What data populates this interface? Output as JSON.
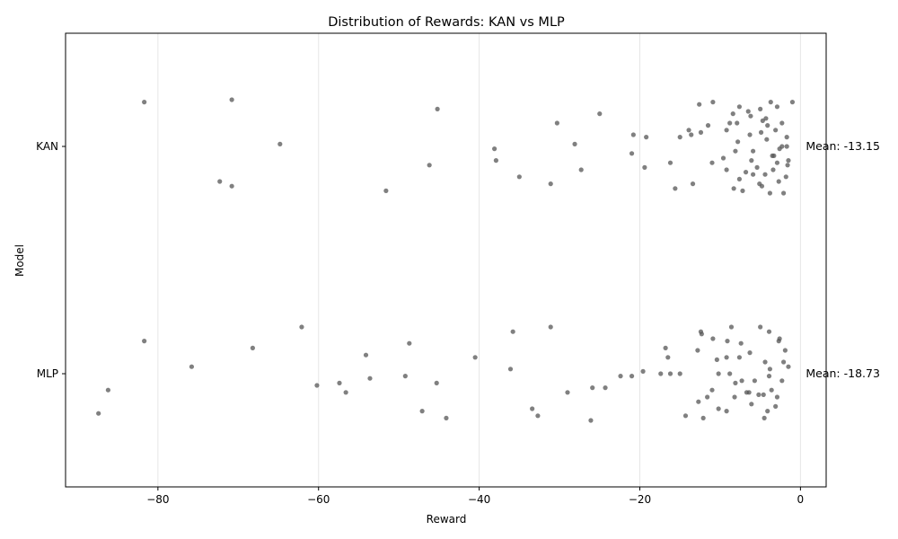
{
  "chart_data": {
    "type": "scatter",
    "title": "Distribution of Rewards: KAN vs MLP",
    "xlabel": "Reward",
    "ylabel": "Model",
    "xlim": [
      -91.5,
      3.2
    ],
    "x_ticks": [
      -80,
      -60,
      -40,
      -20,
      0
    ],
    "x_tick_labels": [
      "−80",
      "−60",
      "−40",
      "−20",
      "0"
    ],
    "categories": [
      "KAN",
      "MLP"
    ],
    "grid": "vertical",
    "point_color": "#555555",
    "series": [
      {
        "name": "KAN",
        "mean_label": "Mean: -13.15",
        "points": [
          [
            -81.7,
            0.19
          ],
          [
            -70.8,
            0.2
          ],
          [
            -45.2,
            0.16
          ],
          [
            -25.0,
            0.14
          ],
          [
            -30.3,
            0.1
          ],
          [
            -20.8,
            0.05
          ],
          [
            -19.2,
            0.04
          ],
          [
            -64.8,
            0.01
          ],
          [
            -38.1,
            -0.01
          ],
          [
            -28.1,
            0.01
          ],
          [
            -21.0,
            -0.03
          ],
          [
            -37.9,
            -0.06
          ],
          [
            -46.2,
            -0.08
          ],
          [
            -35.0,
            -0.13
          ],
          [
            -27.3,
            -0.1
          ],
          [
            -19.4,
            -0.09
          ],
          [
            -16.2,
            -0.07
          ],
          [
            -72.3,
            -0.15
          ],
          [
            -70.8,
            -0.17
          ],
          [
            -51.6,
            -0.19
          ],
          [
            -31.1,
            -0.16
          ],
          [
            -15.6,
            -0.18
          ],
          [
            -13.4,
            -0.16
          ],
          [
            -12.6,
            0.18
          ],
          [
            -10.9,
            0.19
          ],
          [
            -7.6,
            0.17
          ],
          [
            -6.5,
            0.15
          ],
          [
            -5.0,
            0.16
          ],
          [
            -3.7,
            0.19
          ],
          [
            -2.9,
            0.17
          ],
          [
            -1.0,
            0.19
          ],
          [
            -8.4,
            0.14
          ],
          [
            -4.3,
            0.12
          ],
          [
            -2.3,
            0.1
          ],
          [
            -11.5,
            0.09
          ],
          [
            -13.9,
            0.07
          ],
          [
            -12.4,
            0.06
          ],
          [
            -9.2,
            0.07
          ],
          [
            -6.3,
            0.05
          ],
          [
            -4.9,
            0.06
          ],
          [
            -3.1,
            0.07
          ],
          [
            -13.6,
            0.05
          ],
          [
            -15.0,
            0.04
          ],
          [
            -7.8,
            0.02
          ],
          [
            -5.9,
            -0.02
          ],
          [
            -4.2,
            0.03
          ],
          [
            -2.6,
            -0.01
          ],
          [
            -1.7,
            0.0
          ],
          [
            -8.1,
            -0.02
          ],
          [
            -9.6,
            -0.05
          ],
          [
            -11.0,
            -0.07
          ],
          [
            -6.1,
            -0.06
          ],
          [
            -3.5,
            -0.04
          ],
          [
            -2.9,
            -0.07
          ],
          [
            -1.6,
            -0.08
          ],
          [
            -5.4,
            -0.09
          ],
          [
            -9.2,
            -0.1
          ],
          [
            -4.4,
            -0.12
          ],
          [
            -1.8,
            -0.13
          ],
          [
            -7.6,
            -0.14
          ],
          [
            -5.9,
            -0.12
          ],
          [
            -3.4,
            -0.1
          ],
          [
            -8.3,
            -0.18
          ],
          [
            -7.2,
            -0.19
          ],
          [
            -5.1,
            -0.16
          ],
          [
            -3.8,
            -0.2
          ],
          [
            -2.1,
            -0.2
          ],
          [
            -2.7,
            -0.15
          ],
          [
            -4.8,
            -0.17
          ],
          [
            -6.8,
            -0.11
          ],
          [
            -1.5,
            -0.06
          ],
          [
            -2.3,
            0.0
          ],
          [
            -3.3,
            -0.04
          ],
          [
            -4.7,
            0.11
          ],
          [
            -8.8,
            0.1
          ],
          [
            -6.2,
            0.13
          ],
          [
            -7.9,
            0.1
          ],
          [
            -4.1,
            0.09
          ],
          [
            -1.7,
            0.04
          ]
        ]
      },
      {
        "name": "MLP",
        "mean_label": "Mean: -18.73",
        "points": [
          [
            -81.7,
            0.14
          ],
          [
            -62.1,
            0.2
          ],
          [
            -68.2,
            0.11
          ],
          [
            -48.7,
            0.13
          ],
          [
            -35.8,
            0.18
          ],
          [
            -31.1,
            0.2
          ],
          [
            -54.1,
            0.08
          ],
          [
            -40.5,
            0.07
          ],
          [
            -75.8,
            0.03
          ],
          [
            -36.1,
            0.02
          ],
          [
            -49.2,
            -0.01
          ],
          [
            -53.6,
            -0.02
          ],
          [
            -45.3,
            -0.04
          ],
          [
            -57.4,
            -0.04
          ],
          [
            -60.2,
            -0.05
          ],
          [
            -56.6,
            -0.08
          ],
          [
            -86.2,
            -0.07
          ],
          [
            -87.4,
            -0.17
          ],
          [
            -47.1,
            -0.16
          ],
          [
            -44.1,
            -0.19
          ],
          [
            -33.4,
            -0.15
          ],
          [
            -32.7,
            -0.18
          ],
          [
            -29.0,
            -0.08
          ],
          [
            -25.9,
            -0.06
          ],
          [
            -24.3,
            -0.06
          ],
          [
            -26.1,
            -0.2
          ],
          [
            -22.4,
            -0.01
          ],
          [
            -21.0,
            -0.01
          ],
          [
            -19.6,
            0.01
          ],
          [
            -17.4,
            0.0
          ],
          [
            -16.2,
            0.0
          ],
          [
            -15.0,
            0.0
          ],
          [
            -16.8,
            0.11
          ],
          [
            -12.4,
            0.18
          ],
          [
            -12.3,
            0.17
          ],
          [
            -10.9,
            0.15
          ],
          [
            -8.6,
            0.2
          ],
          [
            -12.8,
            0.1
          ],
          [
            -10.4,
            0.06
          ],
          [
            -9.2,
            0.07
          ],
          [
            -7.6,
            0.07
          ],
          [
            -16.5,
            0.07
          ],
          [
            -10.2,
            0.0
          ],
          [
            -8.1,
            -0.04
          ],
          [
            -5.7,
            -0.03
          ],
          [
            -3.9,
            -0.01
          ],
          [
            -2.3,
            -0.03
          ],
          [
            -1.5,
            0.03
          ],
          [
            -11.6,
            -0.1
          ],
          [
            -8.2,
            -0.1
          ],
          [
            -6.4,
            -0.08
          ],
          [
            -4.6,
            -0.09
          ],
          [
            -2.9,
            -0.1
          ],
          [
            -12.7,
            -0.12
          ],
          [
            -10.2,
            -0.15
          ],
          [
            -9.2,
            -0.16
          ],
          [
            -6.1,
            -0.13
          ],
          [
            -4.1,
            -0.16
          ],
          [
            -3.1,
            -0.14
          ],
          [
            -14.3,
            -0.18
          ],
          [
            -12.1,
            -0.19
          ],
          [
            -4.5,
            -0.19
          ],
          [
            -7.4,
            0.13
          ],
          [
            -5.0,
            0.2
          ],
          [
            -3.9,
            0.18
          ],
          [
            -2.6,
            0.15
          ],
          [
            -4.4,
            0.05
          ],
          [
            -6.3,
            0.09
          ],
          [
            -2.1,
            0.05
          ],
          [
            -1.9,
            0.1
          ],
          [
            -8.8,
            0.0
          ],
          [
            -7.3,
            -0.03
          ],
          [
            -6.7,
            -0.08
          ],
          [
            -5.2,
            -0.09
          ],
          [
            -3.6,
            -0.07
          ],
          [
            -3.8,
            0.02
          ],
          [
            -9.1,
            0.14
          ],
          [
            -2.7,
            0.14
          ],
          [
            -11.0,
            -0.07
          ]
        ]
      }
    ]
  }
}
